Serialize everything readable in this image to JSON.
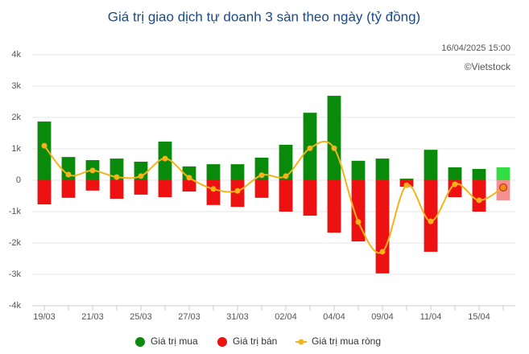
{
  "chart_data": {
    "type": "bar-line",
    "title": "Giá trị giao dịch tự doanh 3 sàn theo ngày (tỷ đồng)",
    "timestamp": "16/04/2025 15:00",
    "credit": "©Vietstock",
    "categories": [
      "19/03",
      null,
      "21/03",
      null,
      "25/03",
      null,
      "27/03",
      null,
      "31/03",
      null,
      "02/04",
      null,
      "04/04",
      null,
      "09/04",
      null,
      "11/04",
      null,
      "15/04",
      null
    ],
    "series": [
      {
        "name": "Giá trị mua",
        "type": "bar",
        "color": "#0a8a0a",
        "highlight_color": "#33dd44",
        "values": [
          1870,
          740,
          640,
          690,
          590,
          1230,
          440,
          510,
          510,
          720,
          1130,
          2150,
          2690,
          620,
          690,
          50,
          970,
          410,
          360,
          410
        ]
      },
      {
        "name": "Giá trị bán",
        "type": "bar",
        "color": "#ee1111",
        "highlight_color": "#f59090",
        "values": [
          -770,
          -560,
          -330,
          -590,
          -460,
          -540,
          -360,
          -790,
          -850,
          -560,
          -1000,
          -1130,
          -1670,
          -1950,
          -2970,
          -210,
          -2280,
          -540,
          -1000,
          -640
        ]
      },
      {
        "name": "Giá trị mua ròng",
        "type": "line",
        "color": "#f5b31a",
        "highlight_color": "#f08a1a",
        "values": [
          1100,
          180,
          310,
          100,
          130,
          690,
          80,
          -280,
          -340,
          160,
          130,
          1020,
          1020,
          -1330,
          -2280,
          -160,
          -1310,
          -130,
          -640,
          -230
        ]
      }
    ],
    "ylim": [
      -4000,
      4000
    ],
    "yticks": [
      {
        "value": -4000,
        "label": "-4k"
      },
      {
        "value": -3000,
        "label": "-3k"
      },
      {
        "value": -2000,
        "label": "-2k"
      },
      {
        "value": -1000,
        "label": "-1k"
      },
      0,
      {
        "value": 1000,
        "label": "1k"
      },
      {
        "value": 2000,
        "label": "2k"
      },
      {
        "value": 3000,
        "label": "3k"
      },
      {
        "value": 4000,
        "label": "4k"
      }
    ],
    "grid": true
  }
}
